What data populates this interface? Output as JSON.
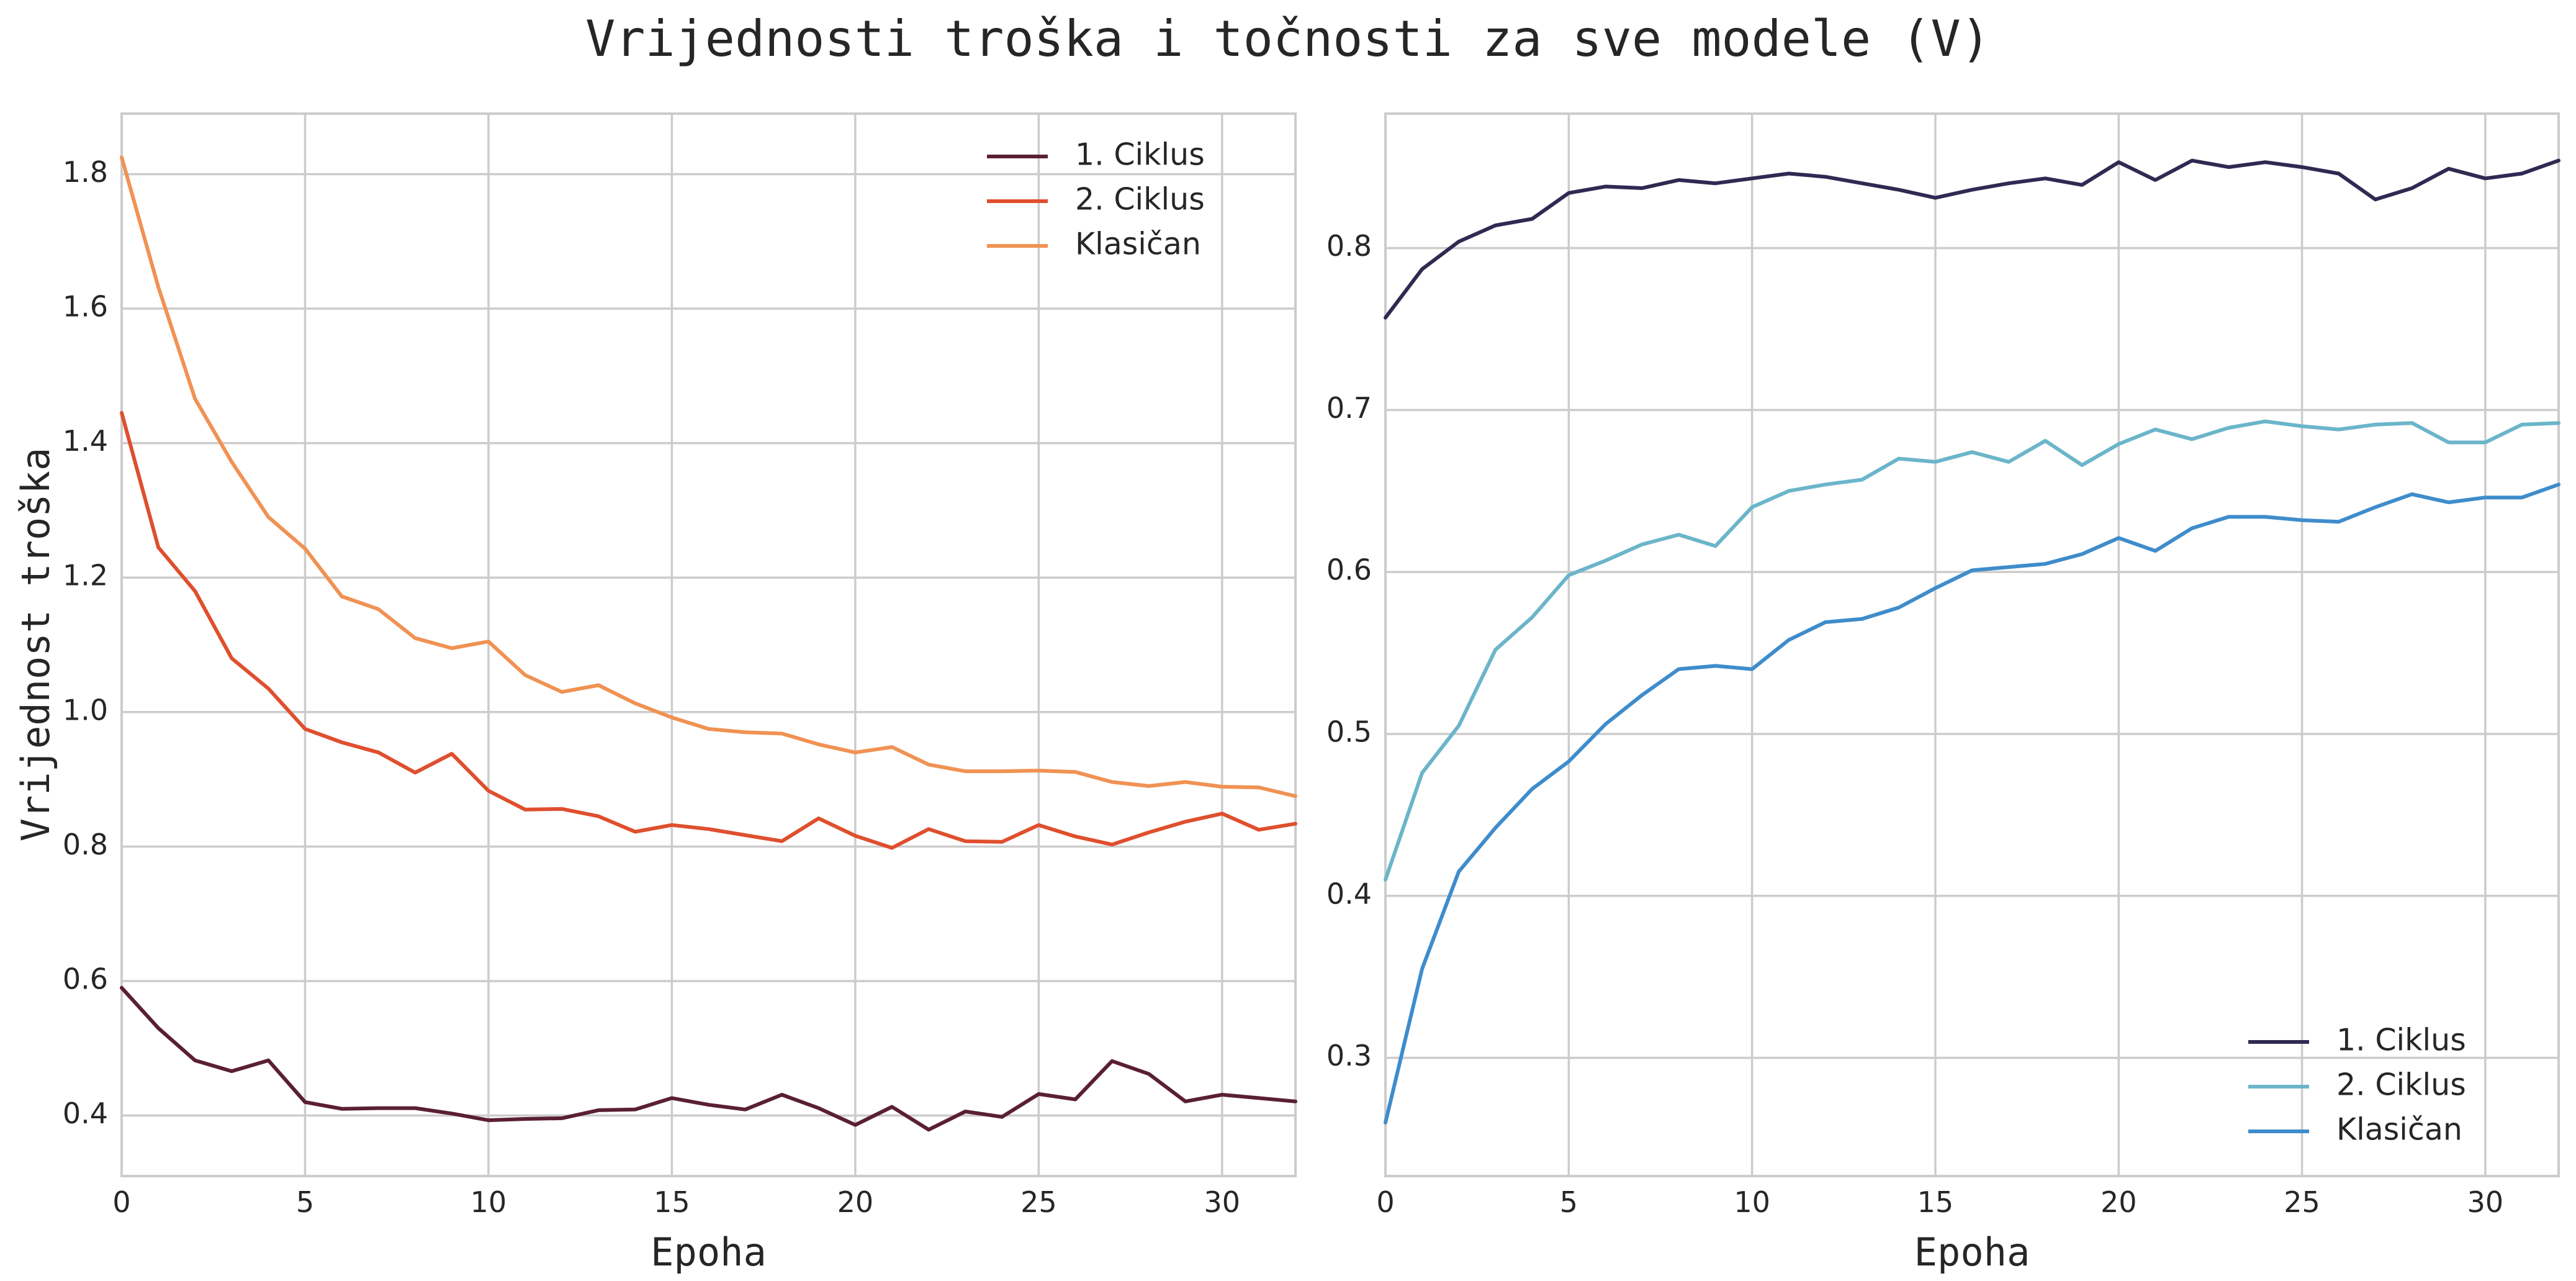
{
  "figure": {
    "title": "Vrijednosti troška i točnosti za sve modele (V)"
  },
  "chart_data": [
    {
      "type": "line",
      "title": "",
      "xlabel": "Epoha",
      "ylabel": "Vrijednost troška",
      "xlim": [
        0,
        32
      ],
      "ylim": [
        0.31,
        1.89
      ],
      "xticks": [
        0,
        5,
        10,
        15,
        20,
        25,
        30
      ],
      "yticks": [
        0.4,
        0.6,
        0.8,
        1.0,
        1.2,
        1.4,
        1.6,
        1.8
      ],
      "grid": true,
      "legend_position": "top-right",
      "x": [
        0,
        1,
        2,
        3,
        4,
        5,
        6,
        7,
        8,
        9,
        10,
        11,
        12,
        13,
        14,
        15,
        16,
        17,
        18,
        19,
        20,
        21,
        22,
        23,
        24,
        25,
        26,
        27,
        28,
        29,
        30,
        31,
        32
      ],
      "series": [
        {
          "name": "1. Ciklus",
          "color": "#5a1f35",
          "values": [
            0.59,
            0.53,
            0.482,
            0.466,
            0.482,
            0.42,
            0.41,
            0.411,
            0.411,
            0.403,
            0.393,
            0.395,
            0.396,
            0.408,
            0.409,
            0.426,
            0.416,
            0.409,
            0.431,
            0.411,
            0.386,
            0.413,
            0.379,
            0.406,
            0.398,
            0.432,
            0.424,
            0.481,
            0.462,
            0.421,
            0.431,
            0.426,
            0.421
          ]
        },
        {
          "name": "2. Ciklus",
          "color": "#df4f2e",
          "values": [
            1.445,
            1.245,
            1.18,
            1.08,
            1.035,
            0.975,
            0.955,
            0.94,
            0.91,
            0.938,
            0.883,
            0.855,
            0.856,
            0.845,
            0.822,
            0.832,
            0.826,
            0.817,
            0.808,
            0.842,
            0.816,
            0.798,
            0.826,
            0.808,
            0.807,
            0.832,
            0.815,
            0.803,
            0.821,
            0.837,
            0.849,
            0.825,
            0.834
          ]
        },
        {
          "name": "Klasičan",
          "color": "#f09253",
          "values": [
            1.825,
            1.632,
            1.466,
            1.372,
            1.29,
            1.243,
            1.172,
            1.153,
            1.11,
            1.095,
            1.105,
            1.055,
            1.03,
            1.04,
            1.013,
            0.992,
            0.975,
            0.97,
            0.968,
            0.952,
            0.94,
            0.948,
            0.922,
            0.912,
            0.912,
            0.913,
            0.911,
            0.896,
            0.89,
            0.896,
            0.889,
            0.888,
            0.875
          ]
        }
      ]
    },
    {
      "type": "line",
      "title": "",
      "xlabel": "Epoha",
      "ylabel": "",
      "xlim": [
        0,
        32
      ],
      "ylim": [
        0.227,
        0.883
      ],
      "xticks": [
        0,
        5,
        10,
        15,
        20,
        25,
        30
      ],
      "yticks": [
        0.3,
        0.4,
        0.5,
        0.6,
        0.7,
        0.8
      ],
      "grid": true,
      "legend_position": "bottom-right",
      "x": [
        0,
        1,
        2,
        3,
        4,
        5,
        6,
        7,
        8,
        9,
        10,
        11,
        12,
        13,
        14,
        15,
        16,
        17,
        18,
        19,
        20,
        21,
        22,
        23,
        24,
        25,
        26,
        27,
        28,
        29,
        30,
        31,
        32
      ],
      "series": [
        {
          "name": "1. Ciklus",
          "color": "#2f2a52",
          "values": [
            0.757,
            0.787,
            0.804,
            0.814,
            0.818,
            0.834,
            0.838,
            0.837,
            0.842,
            0.84,
            0.843,
            0.846,
            0.844,
            0.84,
            0.836,
            0.831,
            0.836,
            0.84,
            0.843,
            0.839,
            0.853,
            0.842,
            0.854,
            0.85,
            0.853,
            0.85,
            0.846,
            0.83,
            0.837,
            0.849,
            0.843,
            0.846,
            0.854
          ]
        },
        {
          "name": "2. Ciklus",
          "color": "#6bb5c9",
          "values": [
            0.41,
            0.476,
            0.505,
            0.552,
            0.572,
            0.598,
            0.607,
            0.617,
            0.623,
            0.616,
            0.64,
            0.65,
            0.654,
            0.657,
            0.67,
            0.668,
            0.674,
            0.668,
            0.681,
            0.666,
            0.679,
            0.688,
            0.682,
            0.689,
            0.693,
            0.69,
            0.688,
            0.691,
            0.692,
            0.68,
            0.68,
            0.691,
            0.692
          ]
        },
        {
          "name": "Klasičan",
          "color": "#3f8ccb",
          "values": [
            0.26,
            0.355,
            0.415,
            0.442,
            0.466,
            0.483,
            0.506,
            0.524,
            0.54,
            0.542,
            0.54,
            0.558,
            0.569,
            0.571,
            0.578,
            0.59,
            0.601,
            0.603,
            0.605,
            0.611,
            0.621,
            0.613,
            0.627,
            0.634,
            0.634,
            0.632,
            0.631,
            0.64,
            0.648,
            0.643,
            0.646,
            0.646,
            0.654
          ]
        }
      ]
    }
  ]
}
